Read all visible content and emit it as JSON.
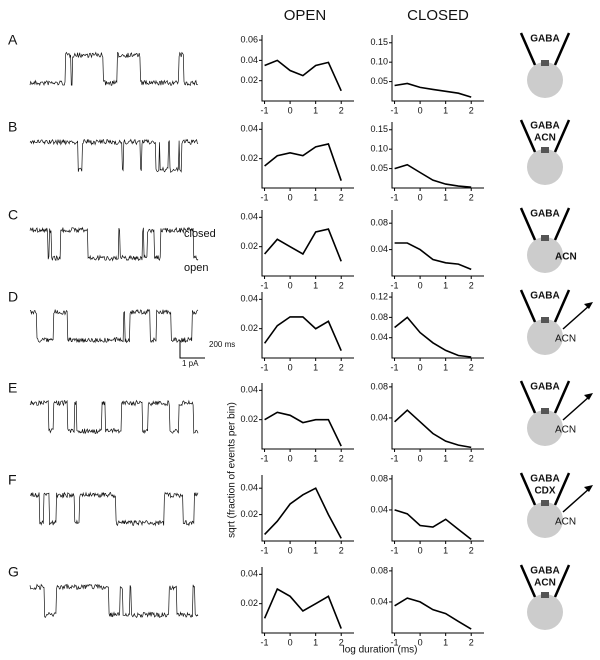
{
  "headers": {
    "open": "OPEN",
    "closed": "CLOSED"
  },
  "y_axis_label": "sqrt (fraction of events per bin)",
  "x_axis_label": "log duration (ms)",
  "trace_labels": {
    "closed": "closed",
    "open": "open"
  },
  "scale_bar": {
    "time": "200 ms",
    "current": "1 pA"
  },
  "curve_x": [
    -1,
    -0.5,
    0,
    0.5,
    1,
    1.5,
    2
  ],
  "xlim": [
    -1.1,
    2.5
  ],
  "xticks": [
    -1,
    0,
    1,
    2
  ],
  "rows": [
    {
      "label": "A",
      "schematic": {
        "top": "GABA"
      },
      "open": {
        "ylim": [
          0,
          0.065
        ],
        "yticks": [
          0.02,
          0.04,
          0.06
        ],
        "fit": [
          0.035,
          0.04,
          0.03,
          0.025,
          0.035,
          0.038,
          0.01
        ]
      },
      "closed": {
        "ylim": [
          0,
          0.17
        ],
        "yticks": [
          0.05,
          {
            "value": 0.1,
            "label": "0.10"
          },
          0.15
        ],
        "fit": [
          0.04,
          0.045,
          0.035,
          0.03,
          0.025,
          0.02,
          0.01
        ]
      }
    },
    {
      "label": "B",
      "schematic": {
        "top": "GABA",
        "inner": "ACN"
      },
      "open": {
        "ylim": [
          0,
          0.045
        ],
        "yticks": [
          0.02,
          0.04
        ],
        "fit": [
          0.015,
          0.022,
          0.024,
          0.022,
          0.028,
          0.03,
          0.005
        ]
      },
      "closed": {
        "ylim": [
          0,
          0.17
        ],
        "yticks": [
          0.05,
          {
            "value": 0.1,
            "label": "0.10"
          },
          0.15
        ],
        "fit": [
          0.05,
          0.06,
          0.04,
          0.02,
          0.01,
          0.005,
          0.002
        ]
      }
    },
    {
      "label": "C",
      "schematic": {
        "top": "GABA",
        "side": "ACN"
      },
      "open": {
        "ylim": [
          0,
          0.045
        ],
        "yticks": [
          0.02,
          0.04
        ],
        "fit": [
          0.015,
          0.025,
          0.02,
          0.015,
          0.03,
          0.032,
          0.01
        ]
      },
      "closed": {
        "ylim": [
          0,
          0.1
        ],
        "yticks": [
          0.04,
          0.08
        ],
        "fit": [
          0.05,
          0.05,
          0.04,
          0.025,
          0.02,
          0.018,
          0.01
        ]
      }
    },
    {
      "label": "D",
      "schematic": {
        "top": "GABA",
        "side": "ACN"
      },
      "open": {
        "ylim": [
          0,
          0.045
        ],
        "yticks": [
          0.02,
          0.04
        ],
        "fit": [
          0.01,
          0.022,
          0.028,
          0.028,
          0.02,
          0.025,
          0.005
        ]
      },
      "closed": {
        "ylim": [
          0,
          0.13
        ],
        "yticks": [
          0.04,
          0.08,
          0.12
        ],
        "fit": [
          0.06,
          0.08,
          0.05,
          0.03,
          0.015,
          0.005,
          0.002
        ]
      }
    },
    {
      "label": "E",
      "schematic": {
        "top": "GABA",
        "side": "ACN"
      },
      "open": {
        "ylim": [
          0,
          0.045
        ],
        "yticks": [
          0.02,
          0.04
        ],
        "fit": [
          0.02,
          0.025,
          0.023,
          0.018,
          0.02,
          0.02,
          0.002
        ]
      },
      "closed": {
        "ylim": [
          0,
          0.085
        ],
        "yticks": [
          0.04,
          0.08
        ],
        "fit": [
          0.035,
          0.05,
          0.035,
          0.02,
          0.01,
          0.005,
          0.002
        ]
      }
    },
    {
      "label": "F",
      "schematic": {
        "top": "GABA",
        "inner": "CDX",
        "side": "ACN"
      },
      "open": {
        "ylim": [
          0,
          0.05
        ],
        "yticks": [
          0.02,
          0.04
        ],
        "fit": [
          0.005,
          0.015,
          0.028,
          0.035,
          0.04,
          0.02,
          0.002
        ]
      },
      "closed": {
        "ylim": [
          0,
          0.085
        ],
        "yticks": [
          0.04,
          0.08
        ],
        "fit": [
          0.04,
          0.035,
          0.02,
          0.018,
          0.028,
          0.015,
          0.002
        ]
      }
    },
    {
      "label": "G",
      "schematic": {
        "top": "GABA",
        "inner": "ACN"
      },
      "open": {
        "ylim": [
          0,
          0.045
        ],
        "yticks": [
          0.02,
          0.04
        ],
        "fit": [
          0.01,
          0.03,
          0.025,
          0.015,
          0.02,
          0.025,
          0.003
        ]
      },
      "closed": {
        "ylim": [
          0,
          0.085
        ],
        "yticks": [
          0.04,
          0.08
        ],
        "fit": [
          0.035,
          0.045,
          0.04,
          0.03,
          0.025,
          0.015,
          0.005
        ]
      }
    }
  ]
}
